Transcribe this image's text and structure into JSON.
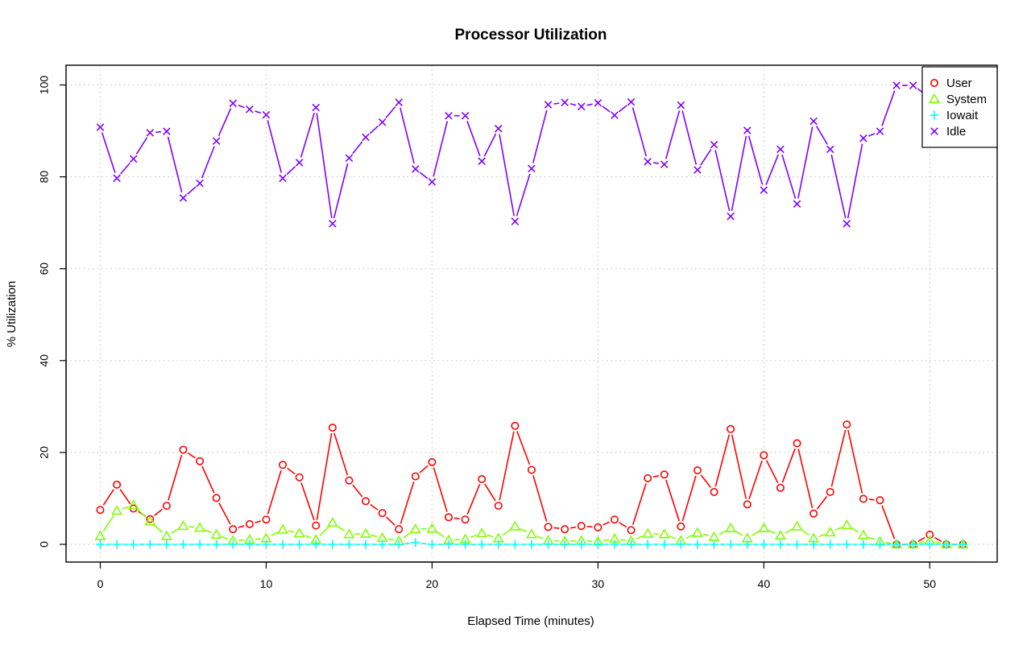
{
  "chart_data": {
    "type": "line",
    "title": "Processor Utilization",
    "xlabel": "Elapsed Time (minutes)",
    "ylabel": "% Utilization",
    "xlim": [
      0,
      52
    ],
    "ylim": [
      0,
      100
    ],
    "x_ticks": [
      0,
      10,
      20,
      30,
      40,
      50
    ],
    "y_ticks": [
      0,
      20,
      40,
      60,
      80,
      100
    ],
    "grid": true,
    "legend_position": "top-right",
    "x": [
      0,
      1,
      2,
      3,
      4,
      5,
      6,
      7,
      8,
      9,
      10,
      11,
      12,
      13,
      14,
      15,
      16,
      17,
      18,
      19,
      20,
      21,
      22,
      23,
      24,
      25,
      26,
      27,
      28,
      29,
      30,
      31,
      32,
      33,
      34,
      35,
      36,
      37,
      38,
      39,
      40,
      41,
      42,
      43,
      44,
      45,
      46,
      47,
      48,
      49,
      50,
      51,
      52
    ],
    "series": [
      {
        "name": "User",
        "color": "#ff0000",
        "marker": "circle",
        "values": [
          7.5,
          13,
          7.8,
          5.5,
          8.4,
          20.6,
          18.1,
          10.1,
          3.3,
          4.4,
          5.4,
          17.3,
          14.6,
          4.1,
          25.4,
          13.9,
          9.4,
          6.8,
          3.3,
          14.8,
          17.9,
          5.9,
          5.4,
          14.2,
          8.4,
          25.8,
          16.2,
          3.8,
          3.3,
          4.0,
          3.7,
          5.4,
          3.1,
          14.4,
          15.2,
          3.9,
          16.1,
          11.4,
          25.1,
          8.7,
          19.4,
          12.3,
          22.0,
          6.7,
          11.4,
          26.1,
          9.9,
          9.6,
          0,
          0,
          2.1,
          0,
          0
        ]
      },
      {
        "name": "System",
        "color": "#80ff00",
        "marker": "triangle",
        "values": [
          1.8,
          7.3,
          8.5,
          5.0,
          1.8,
          4.0,
          3.6,
          2.1,
          0.8,
          1.0,
          1.3,
          3.2,
          2.4,
          1.0,
          4.7,
          2.2,
          2.3,
          1.4,
          0.7,
          3.3,
          3.4,
          0.9,
          1.1,
          2.4,
          1.3,
          3.9,
          2.2,
          0.8,
          0.7,
          0.8,
          0.6,
          1.2,
          0.7,
          2.3,
          2.2,
          0.8,
          2.5,
          1.6,
          3.5,
          1.3,
          3.5,
          1.9,
          3.9,
          1.3,
          2.6,
          4.2,
          2.0,
          0.6,
          0,
          0,
          0.8,
          0,
          0
        ]
      },
      {
        "name": "Iowait",
        "color": "#00ffff",
        "marker": "plus",
        "values": [
          0,
          0,
          0,
          0,
          0,
          0,
          0,
          0,
          0,
          0,
          0,
          0,
          0,
          0,
          0,
          0,
          0,
          0,
          0,
          0.4,
          0,
          0,
          0,
          0,
          0,
          0,
          0,
          0,
          0,
          0,
          0,
          0,
          0,
          0,
          0,
          0,
          0,
          0,
          0,
          0,
          0,
          0,
          0,
          0,
          0,
          0,
          0,
          0,
          0,
          0,
          0,
          0,
          0
        ]
      },
      {
        "name": "Idle",
        "color": "#8000ff",
        "marker": "x",
        "values": [
          90.8,
          79.7,
          83.9,
          89.6,
          89.9,
          75.4,
          78.6,
          87.8,
          96.0,
          94.7,
          93.5,
          79.7,
          83.1,
          95.1,
          69.8,
          84.1,
          88.6,
          91.9,
          96.2,
          81.7,
          78.9,
          93.3,
          93.3,
          83.4,
          90.5,
          70.3,
          81.8,
          95.7,
          96.2,
          95.3,
          96.1,
          93.4,
          96.3,
          83.3,
          82.7,
          95.6,
          81.5,
          87.0,
          71.4,
          90.1,
          77.1,
          86.0,
          74.1,
          92.1,
          86.0,
          69.8,
          88.4,
          89.9,
          99.9,
          99.9,
          97.2,
          99.9,
          99.9
        ]
      }
    ]
  }
}
